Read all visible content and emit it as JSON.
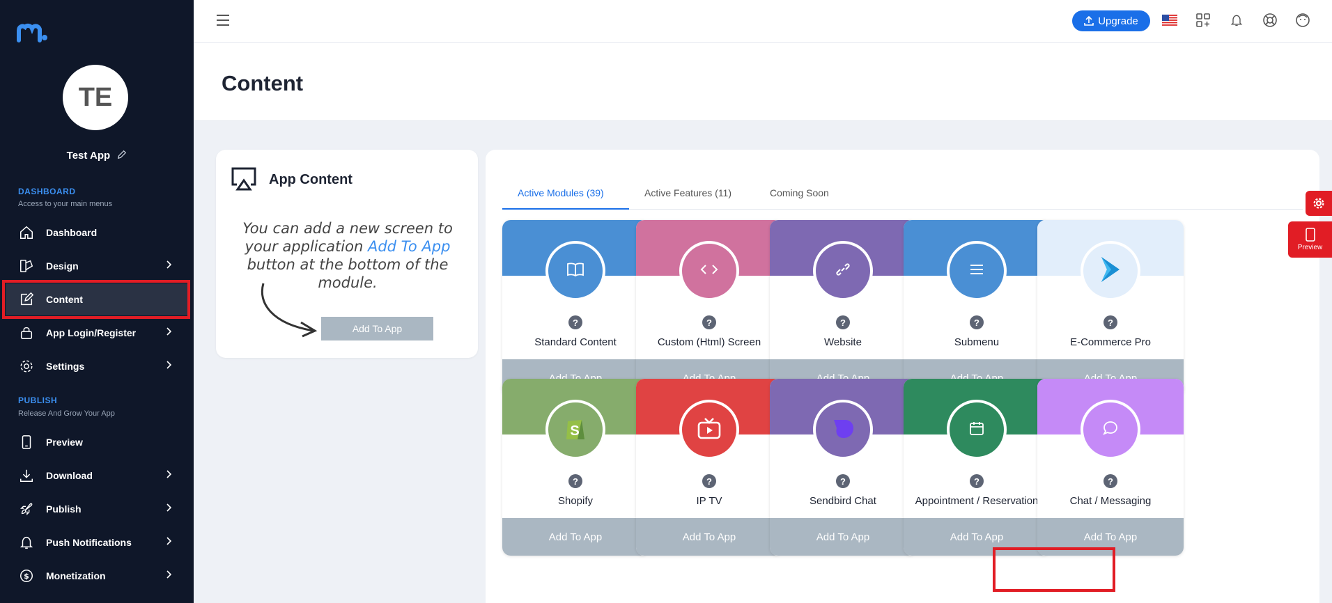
{
  "sidebar": {
    "avatar_initials": "TE",
    "app_name": "Test App",
    "dashboard_section": {
      "title": "DASHBOARD",
      "subtitle": "Access to your main menus"
    },
    "publish_section": {
      "title": "PUBLISH",
      "subtitle": "Release And Grow Your App"
    },
    "items": [
      {
        "label": "Dashboard",
        "icon": "home-icon"
      },
      {
        "label": "Design",
        "icon": "design-icon"
      },
      {
        "label": "Content",
        "icon": "edit-icon"
      },
      {
        "label": "App Login/Register",
        "icon": "lock-icon"
      },
      {
        "label": "Settings",
        "icon": "gear-icon"
      },
      {
        "label": "Preview",
        "icon": "phone-icon"
      },
      {
        "label": "Download",
        "icon": "download-icon"
      },
      {
        "label": "Publish",
        "icon": "rocket-icon"
      },
      {
        "label": "Push Notifications",
        "icon": "bell-icon"
      },
      {
        "label": "Monetization",
        "icon": "dollar-icon"
      }
    ]
  },
  "header": {
    "upgrade_label": "Upgrade"
  },
  "page": {
    "title": "Content"
  },
  "app_content": {
    "title": "App Content",
    "hint_before": "You can add a new screen to your application",
    "hint_accent": "Add To App",
    "hint_after": "button at the bottom of the module.",
    "demo_button": "Add To App"
  },
  "tabs": [
    {
      "label": "Active Modules (39)",
      "active": true
    },
    {
      "label": "Active Features (11)",
      "active": false
    },
    {
      "label": "Coming Soon",
      "active": false
    }
  ],
  "modules": [
    {
      "name": "Standard Content",
      "add_label": "Add To App",
      "band_color": "#4a8fd4",
      "circle_color": "#4a8fd4",
      "icon": "book-icon"
    },
    {
      "name": "Custom (Html) Screen",
      "add_label": "Add To App",
      "band_color": "#d0729e",
      "circle_color": "#d0729e",
      "icon": "code-icon"
    },
    {
      "name": "Website",
      "add_label": "Add To App",
      "band_color": "#7e69b2",
      "circle_color": "#7e69b2",
      "icon": "link-icon"
    },
    {
      "name": "Submenu",
      "add_label": "Add To App",
      "band_color": "#4a8fd4",
      "circle_color": "#4a8fd4",
      "icon": "menu-icon"
    },
    {
      "name": "E-Commerce Pro",
      "add_label": "Add To App",
      "band_color": "#e2eefb",
      "circle_color": "#e2eefb",
      "icon": "ecommerce-icon"
    },
    {
      "name": "Shopify",
      "add_label": "Add To App",
      "band_color": "#86ac6c",
      "circle_color": "#86ac6c",
      "icon": "shopify-icon"
    },
    {
      "name": "IP TV",
      "add_label": "Add To App",
      "band_color": "#e04343",
      "circle_color": "#e04343",
      "icon": "tv-icon"
    },
    {
      "name": "Sendbird Chat",
      "add_label": "Add To App",
      "band_color": "#7e69b2",
      "circle_color": "#7e69b2",
      "icon": "sendbird-icon"
    },
    {
      "name": "Appointment / Reservation",
      "add_label": "Add To App",
      "band_color": "#2e8a5e",
      "circle_color": "#2e8a5e",
      "icon": "calendar-icon"
    },
    {
      "name": "Chat / Messaging",
      "add_label": "Add To App",
      "band_color": "#c58af7",
      "circle_color": "#c58af7",
      "icon": "chat-icon"
    }
  ],
  "floating": {
    "preview_label": "Preview"
  }
}
